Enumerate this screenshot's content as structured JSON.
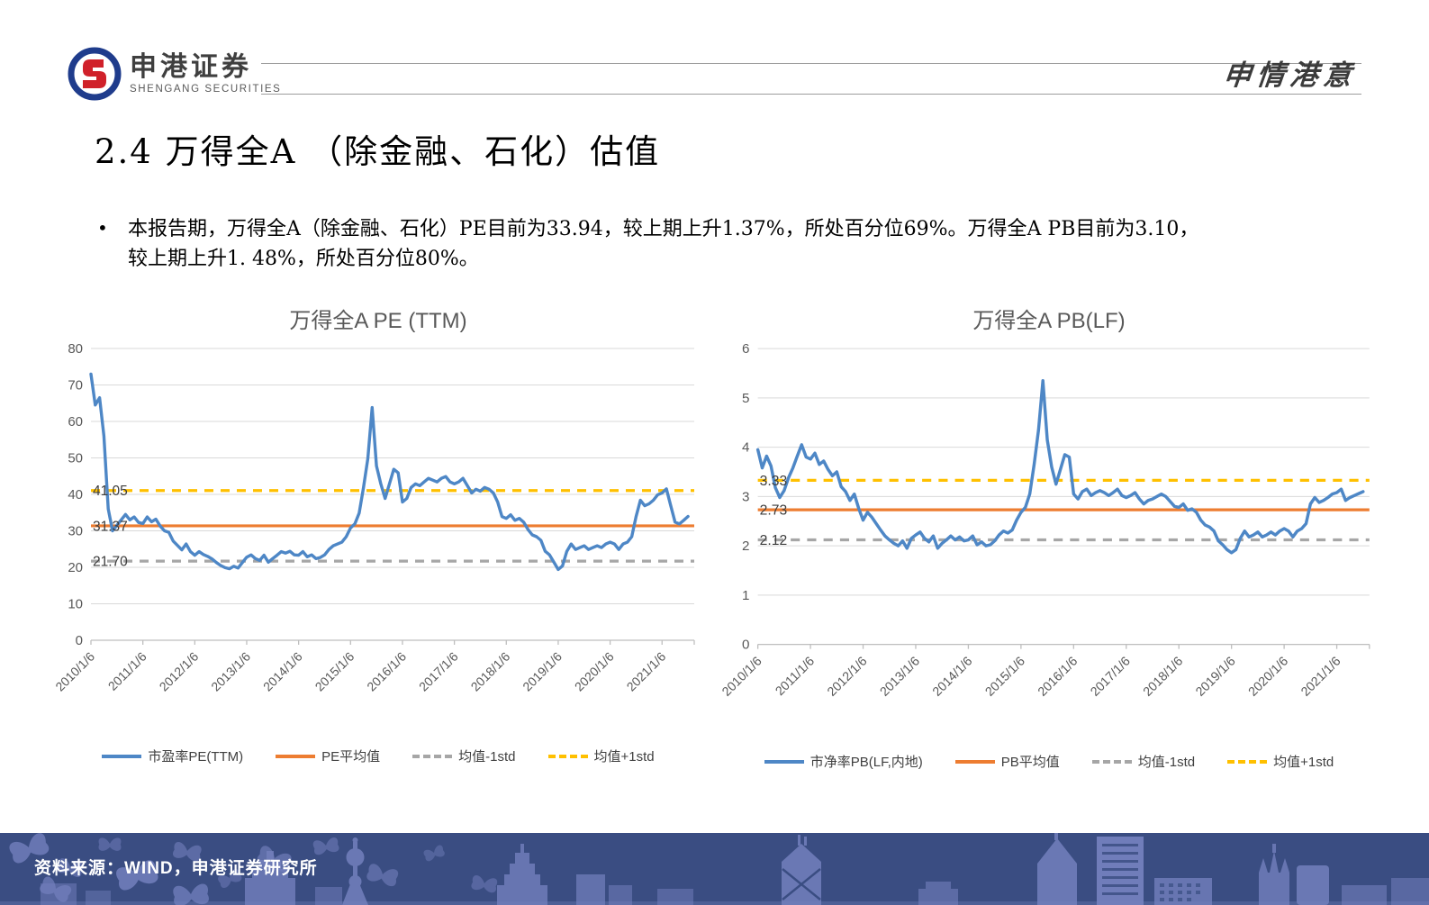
{
  "header": {
    "brand_cn": "申港证券",
    "brand_en": "SHENGANG SECURITIES",
    "slogan": "申情港意"
  },
  "title": "2.4 万得全A （除金融、石化）估值",
  "bullet": {
    "marker": "•",
    "line1": "本报告期，万得全A（除金融、石化）PE目前为33.94，较上期上升1.37%，所处百分位69%。万得全A PB目前为3.10，",
    "line2": "较上期上升1. 48%，所处百分位80%。"
  },
  "colors": {
    "series_blue": "#4E87C6",
    "mean_orange": "#ED7D31",
    "std_gray": "#A6A6A6",
    "std_yellow": "#FFC000",
    "grid": "#D9D9D9",
    "axis": "#BFBFBF",
    "tick_text": "#595959",
    "annotation_text": "#3d3d3d",
    "footer_bg": "#3A4D82",
    "footer_shape": "#7380BD"
  },
  "chart_data": [
    {
      "type": "line",
      "title": "万得全A PE (TTM)",
      "xlabel": "",
      "ylabel": "",
      "ylim": [
        0,
        80
      ],
      "ytick": 10,
      "grid": "horizontal",
      "legend_position": "bottom",
      "x_range": [
        2010,
        2021.62
      ],
      "x_tick_labels": [
        "2010/1/6",
        "2011/1/6",
        "2012/1/6",
        "2013/1/6",
        "2014/1/6",
        "2015/1/6",
        "2016/1/6",
        "2017/1/6",
        "2018/1/6",
        "2019/1/6",
        "2020/1/6",
        "2021/1/6"
      ],
      "series": [
        {
          "name": "市盈率PE(TTM)",
          "color": "#4E87C6",
          "x_start": 2010.0,
          "x_step": 0.0833,
          "values": [
            73.0,
            64.5,
            66.5,
            56.0,
            36.0,
            30.0,
            31.5,
            33.0,
            34.5,
            33.0,
            33.8,
            32.3,
            32.0,
            33.8,
            32.5,
            33.2,
            31.3,
            30.0,
            29.6,
            27.2,
            26.0,
            24.8,
            26.4,
            24.3,
            23.3,
            24.3,
            23.5,
            23.0,
            22.3,
            21.3,
            20.5,
            19.9,
            19.6,
            20.3,
            19.8,
            21.3,
            22.8,
            23.4,
            22.4,
            21.9,
            23.3,
            21.4,
            22.4,
            23.3,
            24.3,
            23.9,
            24.4,
            23.4,
            23.3,
            24.3,
            22.9,
            23.4,
            22.4,
            22.7,
            23.4,
            24.9,
            25.9,
            26.4,
            26.9,
            28.4,
            30.8,
            31.9,
            34.9,
            41.9,
            49.8,
            63.8,
            47.8,
            42.9,
            38.9,
            42.9,
            46.9,
            45.9,
            37.9,
            38.9,
            41.9,
            42.9,
            42.4,
            43.4,
            44.4,
            43.9,
            43.4,
            44.4,
            44.9,
            43.4,
            42.9,
            43.4,
            44.4,
            42.4,
            40.4,
            41.4,
            40.9,
            41.9,
            41.4,
            40.4,
            37.9,
            33.9,
            33.4,
            34.4,
            32.9,
            33.4,
            32.4,
            30.4,
            28.9,
            28.4,
            27.4,
            24.4,
            23.4,
            21.4,
            19.4,
            20.4,
            24.4,
            26.4,
            24.9,
            25.4,
            25.9,
            24.9,
            25.4,
            25.9,
            25.4,
            26.4,
            26.9,
            26.4,
            24.9,
            26.4,
            26.9,
            28.4,
            33.9,
            38.4,
            36.9,
            37.4,
            38.4,
            39.9,
            40.4,
            41.5,
            36.9,
            32.4,
            31.9,
            32.9,
            33.94
          ]
        }
      ],
      "ref_lines": [
        {
          "name": "PE平均值",
          "label": "31.37",
          "value": 31.37,
          "color": "#ED7D31",
          "dash": false
        },
        {
          "name": "均值-1std",
          "label": "21.70",
          "value": 21.7,
          "color": "#A6A6A6",
          "dash": true
        },
        {
          "name": "均值+1std",
          "label": "41.05",
          "value": 41.05,
          "color": "#FFC000",
          "dash": true
        }
      ],
      "current_value": 33.94
    },
    {
      "type": "line",
      "title": "万得全A PB(LF)",
      "xlabel": "",
      "ylabel": "",
      "ylim": [
        0,
        6
      ],
      "ytick": 1,
      "grid": "horizontal",
      "legend_position": "bottom",
      "x_range": [
        2010,
        2021.62
      ],
      "x_tick_labels": [
        "2010/1/6",
        "2011/1/6",
        "2012/1/6",
        "2013/1/6",
        "2014/1/6",
        "2015/1/6",
        "2016/1/6",
        "2017/1/6",
        "2018/1/6",
        "2019/1/6",
        "2020/1/6",
        "2021/1/6"
      ],
      "series": [
        {
          "name": "市净率PB(LF,内地)",
          "color": "#4E87C6",
          "x_start": 2010.0,
          "x_step": 0.0833,
          "values": [
            3.95,
            3.58,
            3.82,
            3.62,
            3.18,
            2.98,
            3.12,
            3.38,
            3.58,
            3.82,
            4.05,
            3.8,
            3.76,
            3.88,
            3.65,
            3.72,
            3.55,
            3.42,
            3.5,
            3.2,
            3.1,
            2.92,
            3.05,
            2.76,
            2.52,
            2.68,
            2.58,
            2.45,
            2.32,
            2.2,
            2.12,
            2.05,
            2.0,
            2.1,
            1.95,
            2.15,
            2.22,
            2.28,
            2.15,
            2.08,
            2.2,
            1.95,
            2.05,
            2.12,
            2.2,
            2.12,
            2.18,
            2.1,
            2.12,
            2.2,
            2.02,
            2.08,
            2.0,
            2.02,
            2.1,
            2.22,
            2.3,
            2.26,
            2.32,
            2.52,
            2.68,
            2.78,
            3.05,
            3.65,
            4.35,
            5.35,
            4.15,
            3.6,
            3.25,
            3.55,
            3.85,
            3.8,
            3.05,
            2.95,
            3.1,
            3.15,
            3.02,
            3.08,
            3.12,
            3.08,
            3.02,
            3.08,
            3.15,
            3.02,
            2.98,
            3.02,
            3.08,
            2.95,
            2.85,
            2.92,
            2.95,
            3.0,
            3.05,
            3.0,
            2.9,
            2.8,
            2.78,
            2.85,
            2.72,
            2.75,
            2.68,
            2.52,
            2.42,
            2.38,
            2.3,
            2.1,
            2.02,
            1.92,
            1.86,
            1.92,
            2.15,
            2.3,
            2.18,
            2.22,
            2.28,
            2.18,
            2.22,
            2.28,
            2.22,
            2.3,
            2.35,
            2.3,
            2.18,
            2.3,
            2.35,
            2.45,
            2.85,
            2.98,
            2.88,
            2.92,
            2.98,
            3.05,
            3.08,
            3.15,
            2.92,
            2.98,
            3.02,
            3.06,
            3.1
          ]
        }
      ],
      "ref_lines": [
        {
          "name": "PB平均值",
          "label": "2.73",
          "value": 2.73,
          "color": "#ED7D31",
          "dash": false
        },
        {
          "name": "均值-1std",
          "label": "2.12",
          "value": 2.12,
          "color": "#A6A6A6",
          "dash": true
        },
        {
          "name": "均值+1std",
          "label": "3.33",
          "value": 3.33,
          "color": "#FFC000",
          "dash": true
        }
      ],
      "current_value": 3.1
    }
  ],
  "footer": {
    "source": "资料来源：WIND，申港证券研究所"
  }
}
